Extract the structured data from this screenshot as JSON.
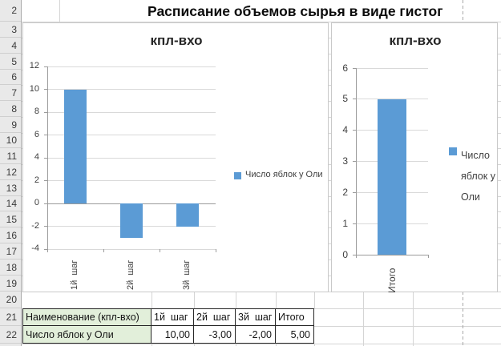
{
  "sheet": {
    "title": "Расписание объемов сырья в виде гистог",
    "row_numbers": [
      "2",
      "3",
      "4",
      "5",
      "6",
      "7",
      "8",
      "9",
      "10",
      "11",
      "12",
      "13",
      "14",
      "15",
      "16",
      "17",
      "18",
      "19",
      "20",
      "21",
      "22"
    ]
  },
  "chart_data": [
    {
      "type": "bar",
      "title": "кпл-вхо",
      "categories": [
        "1й  шаг",
        "2й  шаг",
        "3й  шаг"
      ],
      "series": [
        {
          "name": "Число яблок у Оли",
          "values": [
            10,
            -3,
            -2
          ]
        }
      ],
      "ylim": [
        -4,
        12
      ],
      "ytick_step": 2,
      "grid": true,
      "legend_position": "right",
      "bar_color": "#5B9BD5"
    },
    {
      "type": "bar",
      "title": "кпл-вхо",
      "categories": [
        "Итого"
      ],
      "series": [
        {
          "name": "Число яблок у Оли",
          "values": [
            5
          ]
        }
      ],
      "ylim": [
        0,
        6
      ],
      "ytick_step": 1,
      "grid": true,
      "legend_position": "right",
      "bar_color": "#5B9BD5"
    }
  ],
  "table": {
    "header": [
      "Наименование (кпл-вхо)",
      "1й  шаг",
      "2й  шаг",
      "3й  шаг",
      "Итого"
    ],
    "rows": [
      [
        "Число яблок у Оли",
        "10,00",
        "-3,00",
        "-2,00",
        "5,00"
      ]
    ]
  },
  "colors": {
    "bar": "#5B9BD5",
    "table_label_fill": "#E2EFDA"
  }
}
